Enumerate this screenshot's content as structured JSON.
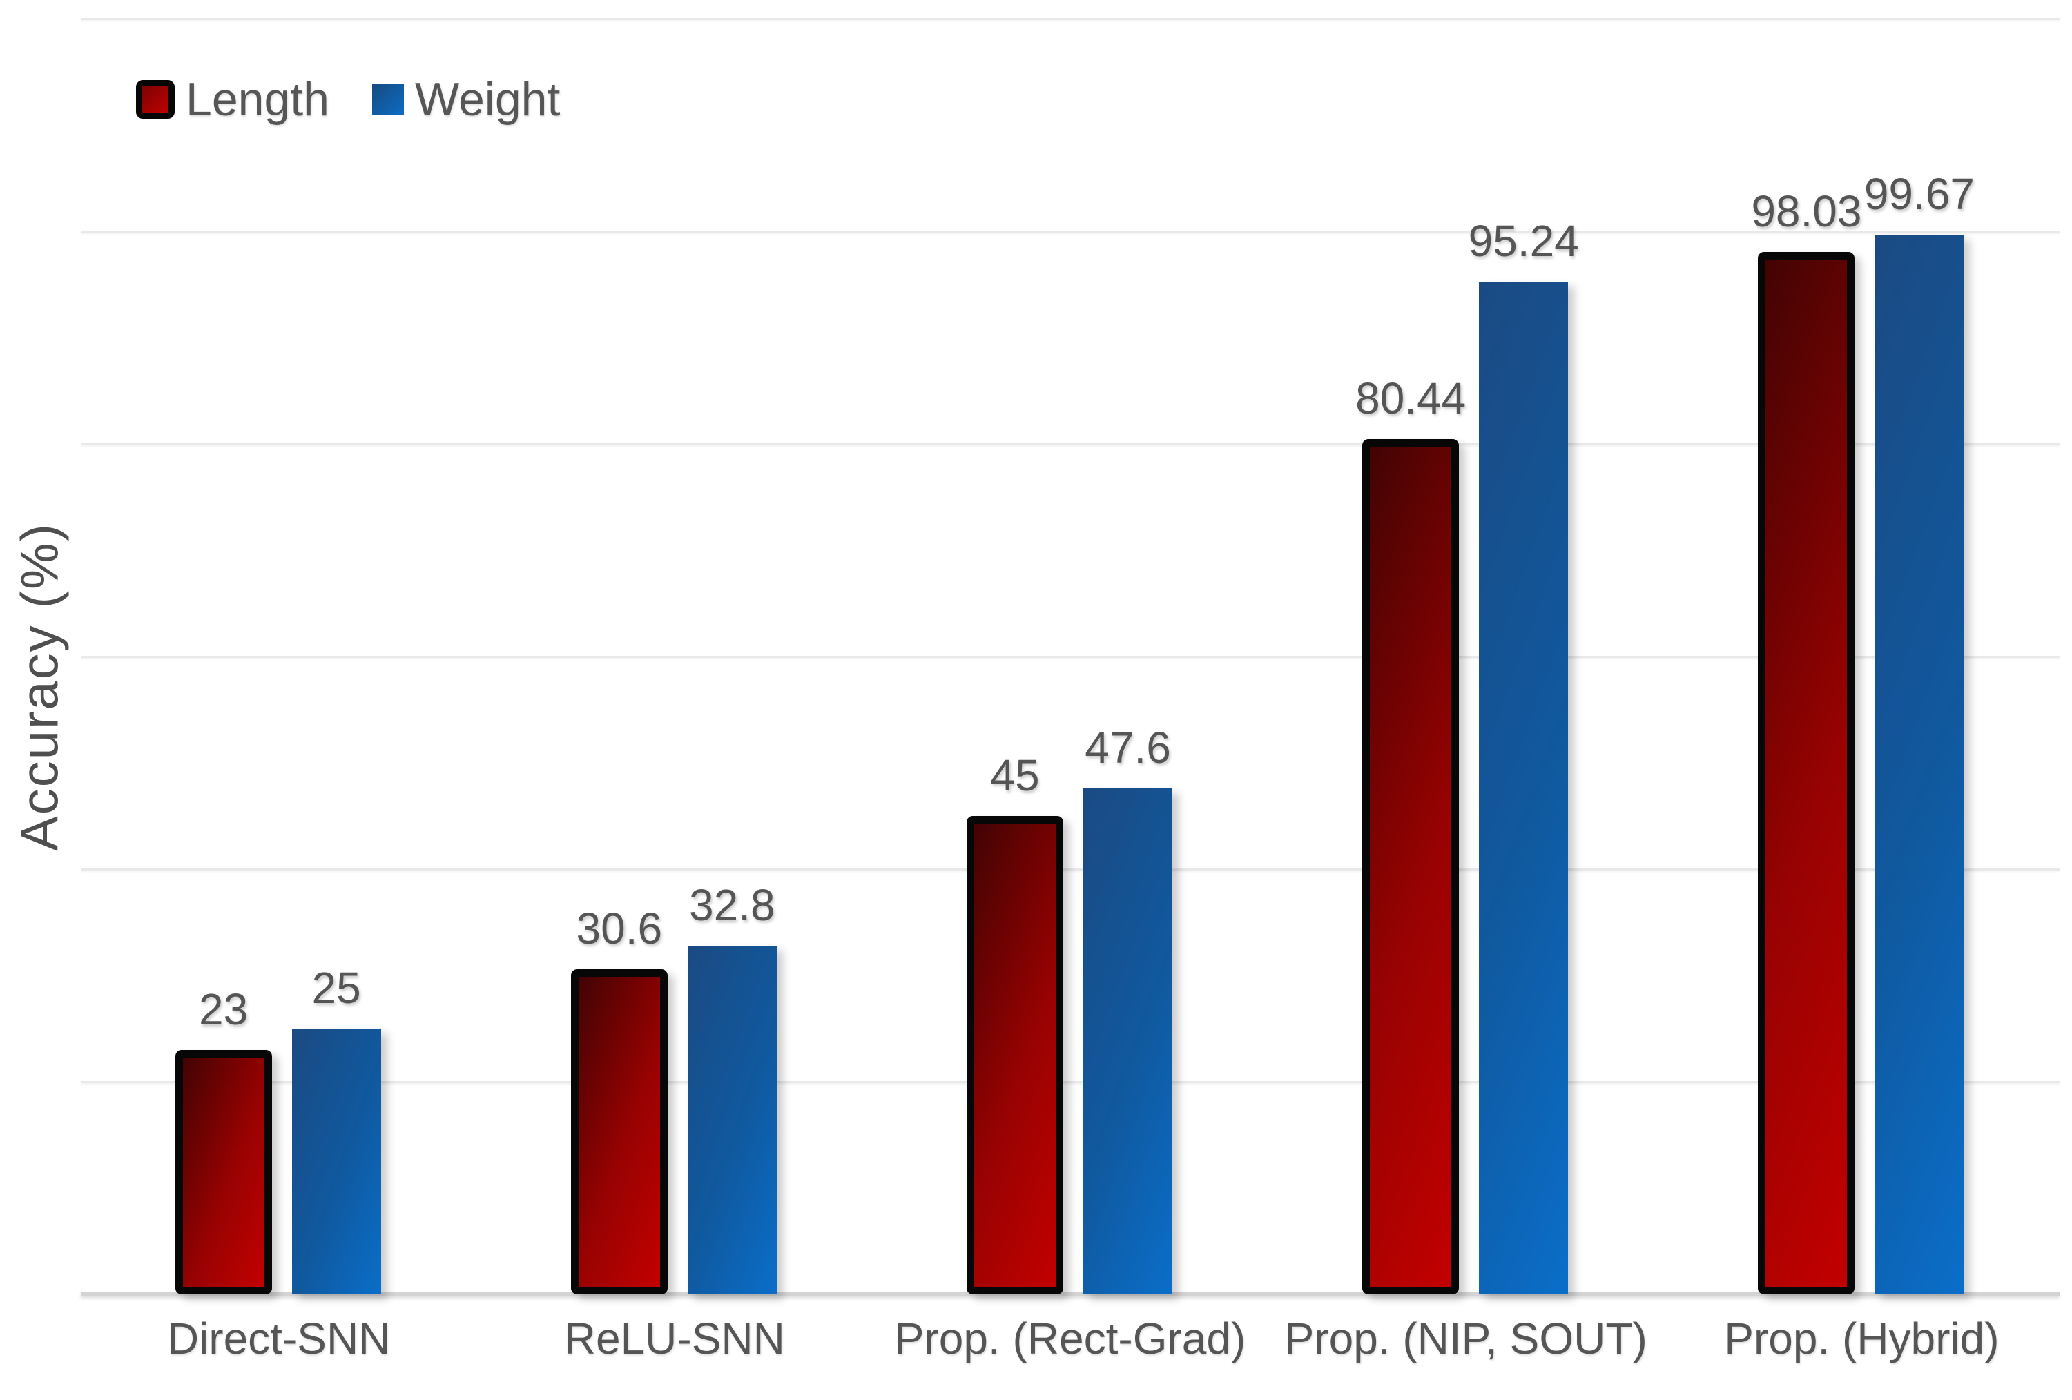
{
  "chart_data": {
    "type": "bar",
    "title": "",
    "xlabel": "",
    "ylabel": "Accuracy (%)",
    "categories": [
      "Direct-SNN",
      "ReLU-SNN",
      "Prop. (Rect-Grad)",
      "Prop. (NIP, SOUT)",
      "Prop. (Hybrid)"
    ],
    "series": [
      {
        "name": "Length",
        "values": [
          23,
          30.6,
          45,
          80.44,
          98.03
        ],
        "labels": [
          "23",
          "30.6",
          "45",
          "80.44",
          "98.03"
        ],
        "gradient": [
          "#420303",
          "#980202",
          "#c30000"
        ],
        "outlined": true,
        "outline_color": "#000000"
      },
      {
        "name": "Weight",
        "values": [
          25,
          32.8,
          47.6,
          95.24,
          99.67
        ],
        "labels": [
          "25",
          "32.8",
          "47.6",
          "95.24",
          "99.67"
        ],
        "gradient": [
          "#1b4a82",
          "#10599f",
          "#0a6ec9"
        ],
        "outlined": false,
        "outline_color": null
      }
    ],
    "ylim": [
      0,
      120
    ],
    "grid_step": 20,
    "grid": "on",
    "y_tick_labels_visible": false,
    "legend_position": "top-left"
  },
  "colors": {
    "background": "#ffffff",
    "text": "#555555",
    "gridline": "#e9e9e9",
    "axis_line": "#d4d4d4",
    "bar_outline": "#000000"
  }
}
